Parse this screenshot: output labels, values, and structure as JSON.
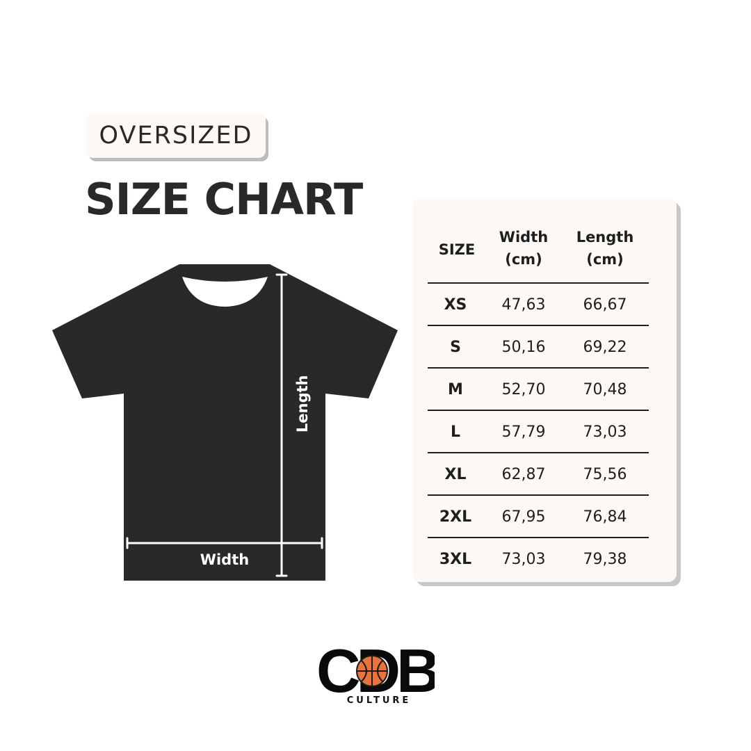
{
  "badge": "OVERSIZED",
  "title": "SIZE CHART",
  "diagram": {
    "length_label": "Length",
    "width_label": "Width",
    "shirt_color": "#2a2828"
  },
  "table": {
    "headers": [
      "SIZE",
      "Width (cm)",
      "Length (cm)"
    ],
    "header_lines": [
      [
        "SIZE"
      ],
      [
        "Width",
        "(cm)"
      ],
      [
        "Length",
        "(cm)"
      ]
    ],
    "rows": [
      [
        "XS",
        "47,63",
        "66,67"
      ],
      [
        "S",
        "50,16",
        "69,22"
      ],
      [
        "M",
        "52,70",
        "70,48"
      ],
      [
        "L",
        "57,79",
        "73,03"
      ],
      [
        "XL",
        "62,87",
        "75,56"
      ],
      [
        "2XL",
        "67,95",
        "76,84"
      ],
      [
        "3XL",
        "73,03",
        "79,38"
      ]
    ]
  },
  "logo": {
    "text": "CDB",
    "subtitle": "CULTURE",
    "ball_color": "#e8743b"
  }
}
